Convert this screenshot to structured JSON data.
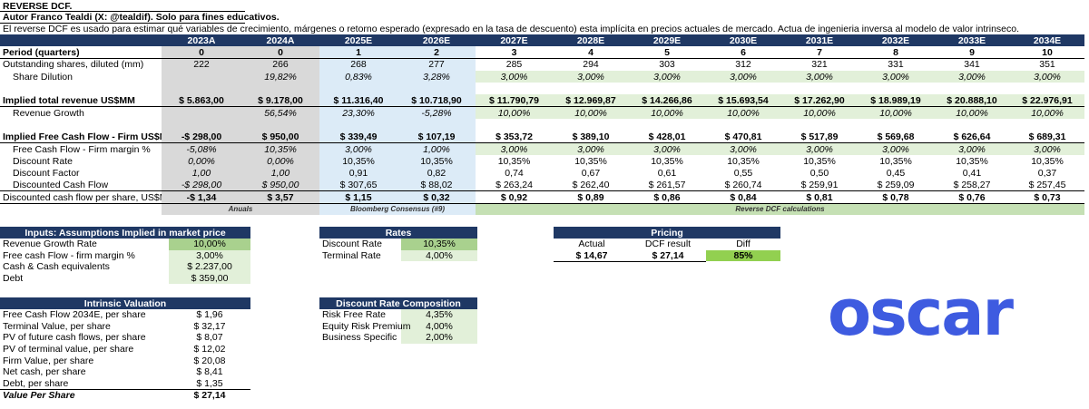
{
  "header": {
    "title": "REVERSE DCF.",
    "author": "Autor Franco Tealdi (X: @tealdif). Solo para fines educativos.",
    "description": "El reverse DCF es usado para estimar qué variables de crecimiento, márgenes o retorno esperado (expresado en la tasa de descuento) esta implícita en precios actuales de mercado. Actua de ingenieria inversa al modelo de valor intrinseco."
  },
  "main_table": {
    "years": [
      "2023A",
      "2024A",
      "2025E",
      "2026E",
      "2027E",
      "2028E",
      "2029E",
      "2030E",
      "2031E",
      "2032E",
      "2033E",
      "2034E"
    ],
    "rows": {
      "period": {
        "label": "Period (quarters)",
        "values": [
          "0",
          "0",
          "1",
          "2",
          "3",
          "4",
          "5",
          "6",
          "7",
          "8",
          "9",
          "10"
        ]
      },
      "shares": {
        "label": "Outstanding shares, diluted (mm)",
        "values": [
          "222",
          "266",
          "268",
          "277",
          "285",
          "294",
          "303",
          "312",
          "321",
          "331",
          "341",
          "351"
        ]
      },
      "dilution": {
        "label": "Share Dilution",
        "values": [
          "",
          "19,82%",
          "0,83%",
          "3,28%",
          "3,00%",
          "3,00%",
          "3,00%",
          "3,00%",
          "3,00%",
          "3,00%",
          "3,00%",
          "3,00%"
        ]
      },
      "revenue": {
        "label": "Implied total revenue US$MM",
        "values": [
          "$ 5.863,00",
          "$ 9.178,00",
          "$ 11.316,40",
          "$ 10.718,90",
          "$ 11.790,79",
          "$ 12.969,87",
          "$ 14.266,86",
          "$ 15.693,54",
          "$ 17.262,90",
          "$ 18.989,19",
          "$ 20.888,10",
          "$ 22.976,91"
        ]
      },
      "growth": {
        "label": "Revenue Growth",
        "values": [
          "",
          "56,54%",
          "23,30%",
          "-5,28%",
          "10,00%",
          "10,00%",
          "10,00%",
          "10,00%",
          "10,00%",
          "10,00%",
          "10,00%",
          "10,00%"
        ]
      },
      "fcf": {
        "label": "Implied Free Cash Flow - Firm US$MM",
        "values": [
          "-$ 298,00",
          "$ 950,00",
          "$ 339,49",
          "$ 107,19",
          "$ 353,72",
          "$ 389,10",
          "$ 428,01",
          "$ 470,81",
          "$ 517,89",
          "$ 569,68",
          "$ 626,64",
          "$ 689,31"
        ]
      },
      "fcf_margin": {
        "label": "Free Cash Flow - Firm margin %",
        "values": [
          "-5,08%",
          "10,35%",
          "3,00%",
          "1,00%",
          "3,00%",
          "3,00%",
          "3,00%",
          "3,00%",
          "3,00%",
          "3,00%",
          "3,00%",
          "3,00%"
        ]
      },
      "discount_rate": {
        "label": "Discount Rate",
        "values": [
          "0,00%",
          "0,00%",
          "10,35%",
          "10,35%",
          "10,35%",
          "10,35%",
          "10,35%",
          "10,35%",
          "10,35%",
          "10,35%",
          "10,35%",
          "10,35%"
        ]
      },
      "discount_factor": {
        "label": "Discount Factor",
        "values": [
          "1,00",
          "1,00",
          "0,91",
          "0,82",
          "0,74",
          "0,67",
          "0,61",
          "0,55",
          "0,50",
          "0,45",
          "0,41",
          "0,37"
        ]
      },
      "discounted_cf": {
        "label": "Discounted Cash Flow",
        "values": [
          "-$ 298,00",
          "$ 950,00",
          "$ 307,65",
          "$ 88,02",
          "$ 263,24",
          "$ 262,40",
          "$ 261,57",
          "$ 260,74",
          "$ 259,91",
          "$ 259,09",
          "$ 258,27",
          "$ 257,45"
        ]
      },
      "dcf_per_share": {
        "label": "Discounted cash flow per share, US$MM",
        "values": [
          "-$ 1,34",
          "$ 3,57",
          "$ 1,15",
          "$ 0,32",
          "$ 0,92",
          "$ 0,89",
          "$ 0,86",
          "$ 0,84",
          "$ 0,81",
          "$ 0,78",
          "$ 0,76",
          "$ 0,73"
        ]
      }
    },
    "footer": {
      "anuals": "Anuals",
      "bloomberg": "Bloomberg Consensus (#9)",
      "reverse": "Reverse DCF calculations"
    }
  },
  "inputs": {
    "title": "Inputs: Assumptions Implied in market price",
    "rows": [
      {
        "label": "Revenue Growth Rate",
        "value": "10,00%"
      },
      {
        "label": "Free cash Flow - firm margin %",
        "value": "3,00%"
      },
      {
        "label": "Cash & Cash equivalents",
        "value": "$ 2.237,00"
      },
      {
        "label": "Debt",
        "value": "$ 359,00"
      }
    ]
  },
  "rates": {
    "title": "Rates",
    "rows": [
      {
        "label": "Discount Rate",
        "value": "10,35%"
      },
      {
        "label": "Terminal Rate",
        "value": "4,00%"
      }
    ]
  },
  "pricing": {
    "title": "Pricing",
    "headers": [
      "Actual",
      "DCF result",
      "Diff"
    ],
    "values": [
      "$ 14,67",
      "$ 27,14",
      "85%"
    ]
  },
  "intrinsic": {
    "title": "Intrinsic Valuation",
    "rows": [
      {
        "label": "Free Cash Flow 2034E, per share",
        "value": "$ 1,96"
      },
      {
        "label": "Terminal Value, per share",
        "value": "$ 32,17"
      },
      {
        "label": "PV of future cash flows, per share",
        "value": "$ 8,07"
      },
      {
        "label": "PV of terminal value, per share",
        "value": "$ 12,02"
      },
      {
        "label": "Firm Value, per share",
        "value": "$ 20,08"
      },
      {
        "label": "Net cash, per share",
        "value": "$ 8,41"
      },
      {
        "label": "Debt, per share",
        "value": "$ 1,35"
      },
      {
        "label": "Value Per Share",
        "value": "$ 27,14"
      }
    ]
  },
  "composition": {
    "title": "Discount Rate Composition",
    "rows": [
      {
        "label": "Risk Free Rate",
        "value": "4,35%"
      },
      {
        "label": "Equity Risk Premium",
        "value": "4,00%"
      },
      {
        "label": "Business Specific",
        "value": "2,00%"
      }
    ]
  },
  "logo": {
    "text": "oscar"
  },
  "colors": {
    "header_navy": "#1f3864",
    "logo_blue": "#3e5be0",
    "green_highlight": "#92d050"
  }
}
